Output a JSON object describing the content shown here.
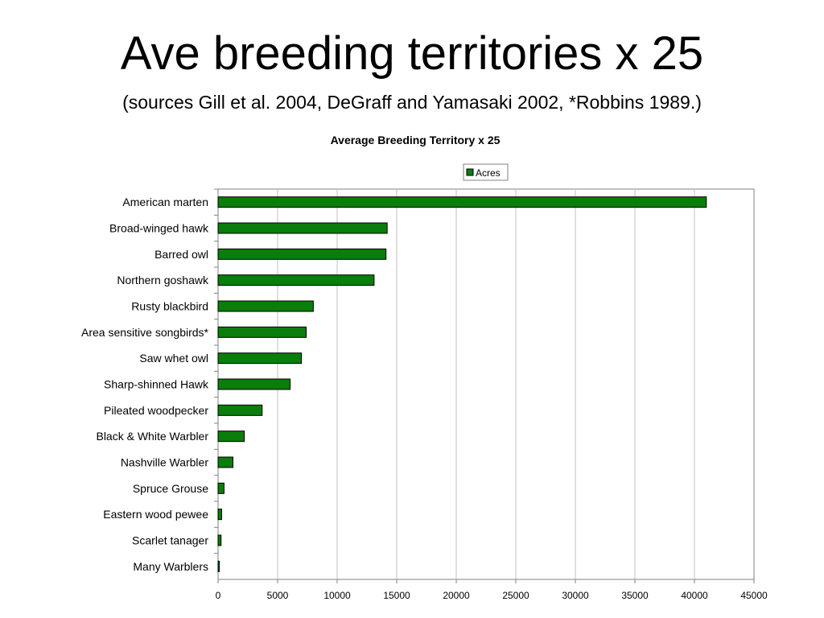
{
  "slide": {
    "title": "Ave breeding territories x 25",
    "subtitle": "(sources Gill et al. 2004, DeGraff and Yamasaki 2002, *Robbins 1989.)"
  },
  "colors": {
    "bar_fill": "#0a7d0a",
    "bar_stroke": "#000000",
    "grid": "#c0c0c0",
    "axis": "#808080"
  },
  "chart_data": {
    "type": "bar",
    "orientation": "horizontal",
    "title": "Average Breeding Territory x 25",
    "legend": {
      "position": "top",
      "entries": [
        "Acres"
      ]
    },
    "grid": true,
    "xlim": [
      0,
      45000
    ],
    "xticks": [
      0,
      5000,
      10000,
      15000,
      20000,
      25000,
      30000,
      35000,
      40000,
      45000
    ],
    "categories": [
      "American marten",
      "Broad-winged hawk",
      "Barred owl",
      "Northern goshawk",
      "Rusty blackbird",
      "Area sensitive songbirds*",
      "Saw whet owl",
      "Sharp-shinned Hawk",
      "Pileated woodpecker",
      "Black & White Warbler",
      "Nashville Warbler",
      "Spruce Grouse",
      "Eastern wood pewee",
      "Scarlet tanager",
      "Many Warblers"
    ],
    "series": [
      {
        "name": "Acres",
        "values": [
          41000,
          14200,
          14100,
          13100,
          8000,
          7400,
          7000,
          6050,
          3700,
          2200,
          1250,
          500,
          300,
          250,
          100
        ]
      }
    ]
  }
}
